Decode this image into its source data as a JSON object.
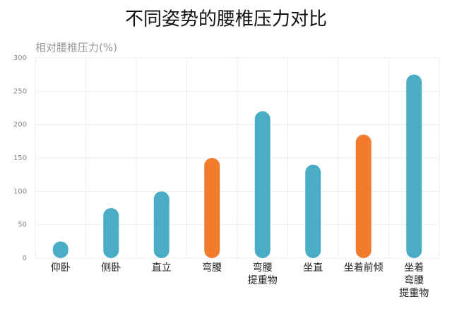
{
  "chart_data": {
    "type": "bar",
    "title": "不同姿势的腰椎压力对比",
    "y_label": "相对腰椎压力(%)",
    "categories": [
      "仰卧",
      "侧卧",
      "直立",
      "弯腰",
      "弯腰\n提重物",
      "坐直",
      "坐着前倾",
      "坐着\n弯腰\n提重物"
    ],
    "values": [
      25,
      75,
      100,
      150,
      220,
      140,
      185,
      275
    ],
    "colors": [
      "#4bacc6",
      "#4bacc6",
      "#4bacc6",
      "#f07c2c",
      "#4bacc6",
      "#4bacc6",
      "#f07c2c",
      "#4bacc6"
    ],
    "ylim": [
      0,
      300
    ],
    "yticks": [
      0,
      50,
      100,
      150,
      200,
      250,
      300
    ],
    "grid": true
  }
}
